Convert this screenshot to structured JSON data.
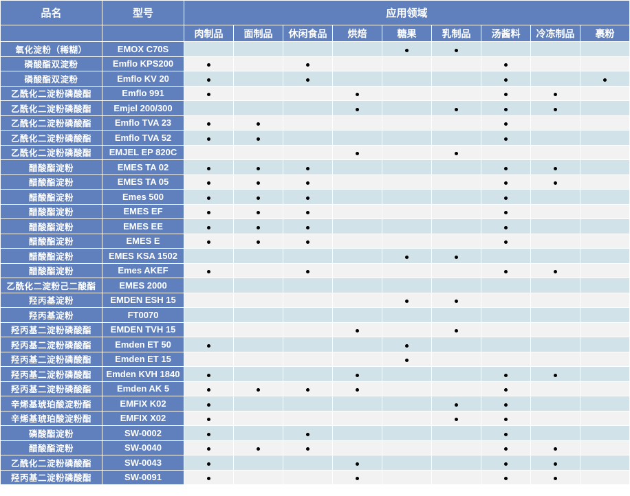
{
  "header": {
    "name": "品名",
    "model": "型号",
    "application": "应用领域"
  },
  "colors": {
    "header": "#5f7fbd",
    "row_a": "#d1e2e9",
    "row_b": "#f2f2f2",
    "dot": "#000000"
  },
  "categories": [
    "肉制品",
    "面制品",
    "休闲食品",
    "烘焙",
    "糖果",
    "乳制品",
    "汤酱料",
    "冷冻制品",
    "裹粉"
  ],
  "rows": [
    {
      "name": "氧化淀粉（稀糊）",
      "model": "EMOX C70S",
      "uses": [
        4,
        5
      ]
    },
    {
      "name": "磷酸酯双淀粉",
      "model": "Emflo KPS200",
      "uses": [
        0,
        2,
        6
      ]
    },
    {
      "name": "磷酸酯双淀粉",
      "model": "Emflo KV 20",
      "uses": [
        0,
        2,
        6,
        8
      ]
    },
    {
      "name": "乙酰化二淀粉磷酸酯",
      "model": "Emflo 991",
      "uses": [
        0,
        3,
        6,
        7
      ]
    },
    {
      "name": "乙酰化二淀粉磷酸酯",
      "model": "Emjel 200/300",
      "uses": [
        3,
        5,
        6,
        7
      ]
    },
    {
      "name": "乙酰化二淀粉磷酸酯",
      "model": "Emflo TVA 23",
      "uses": [
        0,
        1,
        6
      ]
    },
    {
      "name": "乙酰化二淀粉磷酸酯",
      "model": "Emflo TVA 52",
      "uses": [
        0,
        1,
        6
      ]
    },
    {
      "name": "乙酰化二淀粉磷酸酯",
      "model": "EMJEL EP 820C",
      "uses": [
        3,
        5
      ]
    },
    {
      "name": "醋酸酯淀粉",
      "model": "EMES TA 02",
      "uses": [
        0,
        1,
        2,
        6,
        7
      ]
    },
    {
      "name": "醋酸酯淀粉",
      "model": "EMES TA 05",
      "uses": [
        0,
        1,
        2,
        6,
        7
      ]
    },
    {
      "name": "醋酸酯淀粉",
      "model": "Emes 500",
      "uses": [
        0,
        1,
        2,
        6
      ]
    },
    {
      "name": "醋酸酯淀粉",
      "model": "EMES EF",
      "uses": [
        0,
        1,
        2,
        6
      ]
    },
    {
      "name": "醋酸酯淀粉",
      "model": "EMES EE",
      "uses": [
        0,
        1,
        2,
        6
      ]
    },
    {
      "name": "醋酸酯淀粉",
      "model": "EMES E",
      "uses": [
        0,
        1,
        2,
        6
      ]
    },
    {
      "name": "醋酸酯淀粉",
      "model": "EMES KSA 1502",
      "uses": [
        4,
        5
      ]
    },
    {
      "name": "醋酸酯淀粉",
      "model": "Emes AKEF",
      "uses": [
        0,
        2,
        6,
        7
      ]
    },
    {
      "name": "乙酰化二淀粉己二酸酯",
      "model": "EMES 2000",
      "uses": []
    },
    {
      "name": "羟丙基淀粉",
      "model": "EMDEN ESH 15",
      "uses": [
        4,
        5
      ]
    },
    {
      "name": "羟丙基淀粉",
      "model": "FT0070",
      "uses": []
    },
    {
      "name": "羟丙基二淀粉磷酸酯",
      "model": "EMDEN TVH 15",
      "uses": [
        3,
        5
      ]
    },
    {
      "name": "羟丙基二淀粉磷酸酯",
      "model": "Emden ET 50",
      "uses": [
        0,
        4
      ]
    },
    {
      "name": "羟丙基二淀粉磷酸酯",
      "model": "Emden ET 15",
      "uses": [
        4
      ]
    },
    {
      "name": "羟丙基二淀粉磷酸酯",
      "model": "Emden KVH 1840",
      "uses": [
        0,
        3,
        6,
        7
      ]
    },
    {
      "name": "羟丙基二淀粉磷酸酯",
      "model": "Emden AK 5",
      "uses": [
        0,
        1,
        2,
        3,
        6
      ]
    },
    {
      "name": "辛烯基琥珀酸淀粉酯",
      "model": "EMFIX K02",
      "uses": [
        0,
        5,
        6
      ]
    },
    {
      "name": "辛烯基琥珀酸淀粉酯",
      "model": "EMFIX X02",
      "uses": [
        0,
        5,
        6
      ]
    },
    {
      "name": "磷酸酯淀粉",
      "model": "SW-0002",
      "uses": [
        0,
        2,
        6
      ]
    },
    {
      "name": "醋酸酯淀粉",
      "model": "SW-0040",
      "uses": [
        0,
        1,
        2,
        6,
        7
      ]
    },
    {
      "name": "乙酰化二淀粉磷酸酯",
      "model": "SW-0043",
      "uses": [
        0,
        3,
        6,
        7
      ]
    },
    {
      "name": "羟丙基二淀粉磷酸酯",
      "model": "SW-0091",
      "uses": [
        0,
        3,
        6,
        7
      ]
    }
  ]
}
